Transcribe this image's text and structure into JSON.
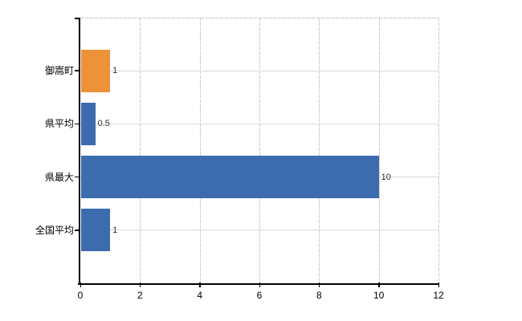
{
  "chart_data": {
    "type": "bar",
    "orientation": "horizontal",
    "title": "",
    "xlabel": "",
    "ylabel": "",
    "categories": [
      "御嵩町",
      "県平均",
      "県最大",
      "全国平均"
    ],
    "values": [
      1,
      0.5,
      10,
      1
    ],
    "data_labels": [
      "1",
      "0.5",
      "10",
      "1"
    ],
    "bar_colors": [
      "#ee923a",
      "#3d6cae",
      "#3d6cae",
      "#3d6cae"
    ],
    "x_ticks": [
      "0",
      "2",
      "4",
      "6",
      "8",
      "10",
      "12"
    ],
    "x_tick_values": [
      0,
      2,
      4,
      6,
      8,
      10,
      12
    ],
    "xlim": [
      0,
      12
    ],
    "grid": true,
    "legend": false
  },
  "colors": {
    "background": "#ffffff",
    "bar_orange": "#ee923a",
    "bar_blue": "#3d6cae",
    "axis_line": "#000000",
    "gridline_horizontal": "#d5ddd5",
    "gridline_vertical": "#d6cccc",
    "category_label_text": "#000000",
    "tick_label_text": "#000000",
    "data_label_text": "#2e2e2e"
  }
}
